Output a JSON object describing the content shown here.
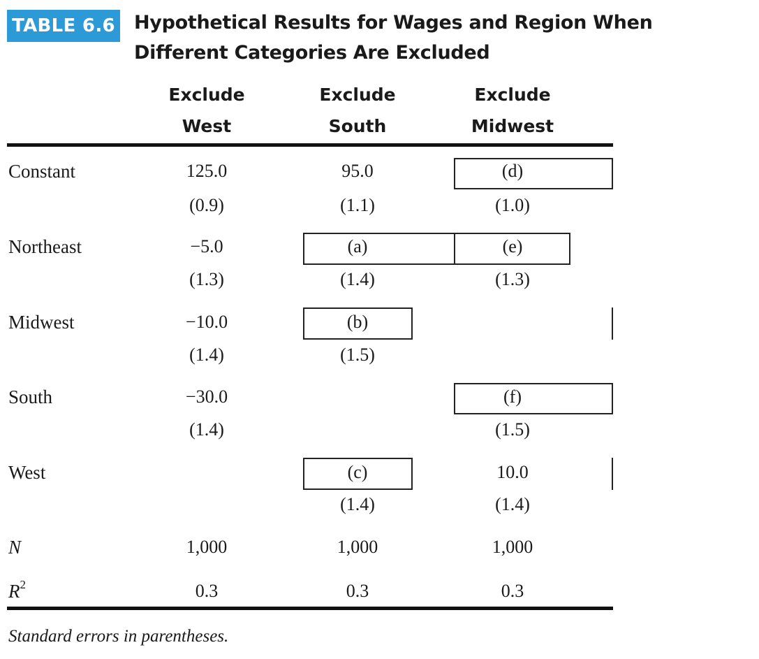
{
  "badge": "TABLE 6.6",
  "title": {
    "line1": "Hypothetical Results for Wages and Region When",
    "line2": "Different Categories Are Excluded"
  },
  "columns": [
    {
      "line1": "Exclude",
      "line2": "West"
    },
    {
      "line1": "Exclude",
      "line2": "South"
    },
    {
      "line1": "Exclude",
      "line2": "Midwest"
    }
  ],
  "rows": [
    {
      "label": "Constant",
      "cells": [
        {
          "value": "125.0",
          "se": "(0.9)"
        },
        {
          "value": "95.0",
          "se": "(1.1)"
        },
        {
          "value": "(d)",
          "se": "(1.0)"
        }
      ]
    },
    {
      "label": "Northeast",
      "cells": [
        {
          "value": "−5.0",
          "se": "(1.3)"
        },
        {
          "value": "(a)",
          "se": "(1.4)"
        },
        {
          "value": "(e)",
          "se": "(1.3)"
        }
      ]
    },
    {
      "label": "Midwest",
      "cells": [
        {
          "value": "−10.0",
          "se": "(1.4)"
        },
        {
          "value": "(b)",
          "se": "(1.5)"
        },
        {
          "value": "",
          "se": ""
        }
      ]
    },
    {
      "label": "South",
      "cells": [
        {
          "value": "−30.0",
          "se": "(1.4)"
        },
        {
          "value": "",
          "se": ""
        },
        {
          "value": "(f)",
          "se": "(1.5)"
        }
      ]
    },
    {
      "label": "West",
      "cells": [
        {
          "value": "",
          "se": ""
        },
        {
          "value": "(c)",
          "se": "(1.4)"
        },
        {
          "value": "10.0",
          "se": "(1.4)"
        }
      ]
    }
  ],
  "n_row": {
    "label": "N",
    "values": [
      "1,000",
      "1,000",
      "1,000"
    ]
  },
  "r2_row": {
    "label": "R",
    "superscript": "2",
    "values": [
      "0.3",
      "0.3",
      "0.3"
    ]
  },
  "footnote": "Standard errors in parentheses."
}
